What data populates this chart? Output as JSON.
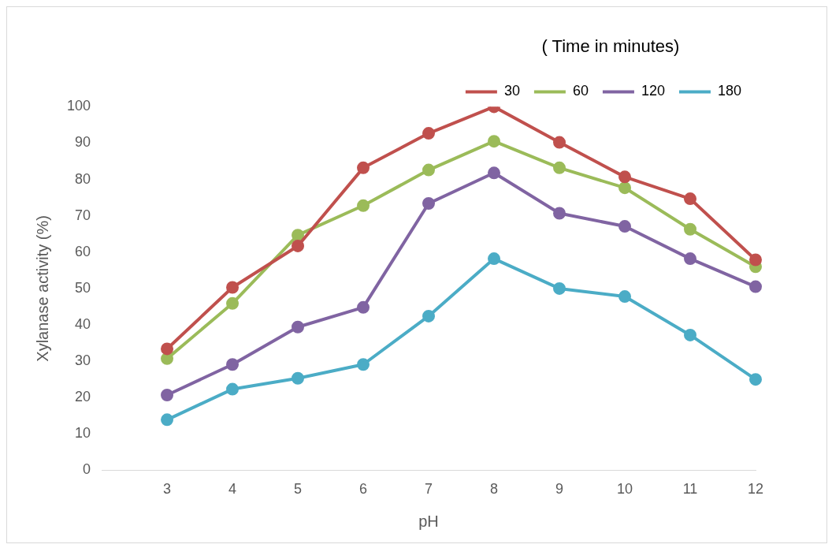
{
  "chart_data": {
    "type": "line",
    "xlabel": "pH",
    "ylabel": "Xylanase activity (%)",
    "legend_title": "( Time in minutes)",
    "categories": [
      null,
      "3",
      "4",
      "5",
      "6",
      "7",
      "8",
      "9",
      "10",
      "11",
      "12"
    ],
    "ylim": [
      0,
      100
    ],
    "yticks": [
      0,
      10,
      20,
      30,
      40,
      50,
      60,
      70,
      80,
      90,
      100
    ],
    "grid": false,
    "legend": "top right",
    "marker": "circle",
    "line_style": "solid",
    "series": [
      {
        "name": "30",
        "color": "#c0504d",
        "values": [
          null,
          33.4,
          50.3,
          61.7,
          83.2,
          92.7,
          100,
          90.2,
          80.7,
          74.7,
          57.9
        ]
      },
      {
        "name": "60",
        "color": "#9bbb59",
        "values": [
          null,
          30.7,
          45.9,
          64.7,
          72.8,
          82.6,
          90.5,
          83.2,
          77.7,
          66.3,
          56
        ]
      },
      {
        "name": "120",
        "color": "#8064a2",
        "values": [
          null,
          20.7,
          29.1,
          39.4,
          44.8,
          73.4,
          81.8,
          70.7,
          67.1,
          58.2,
          50.5
        ]
      },
      {
        "name": "180",
        "color": "#4bacc6",
        "values": [
          null,
          13.9,
          22.3,
          25.3,
          29.1,
          42.4,
          58.2,
          50,
          47.8,
          37.2,
          25
        ]
      }
    ]
  }
}
